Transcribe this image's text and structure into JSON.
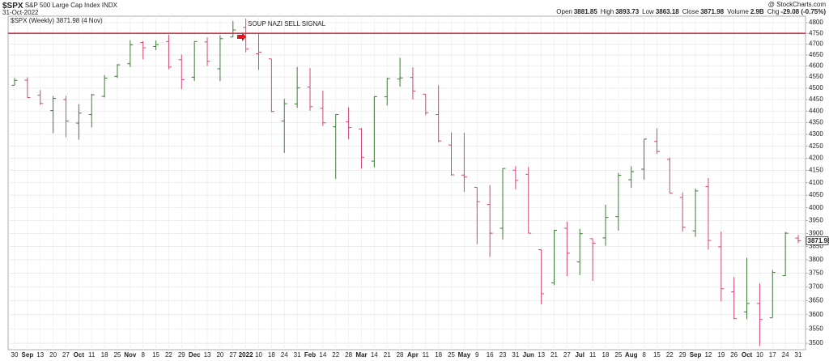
{
  "chart_data": {
    "type": "ohlc",
    "title": "$SPX",
    "subtitle": "S&P 500 Large Cap Index",
    "exchange": "INDX",
    "date": "31-Oct-2022",
    "source": "@ StockCharts.com",
    "info": [
      {
        "label": "Open",
        "value": "3881.85"
      },
      {
        "label": "High",
        "value": "3893.73"
      },
      {
        "label": "Low",
        "value": "3863.18"
      },
      {
        "label": "Close",
        "value": "3871.98"
      },
      {
        "label": "Volume",
        "value": "2.9B"
      },
      {
        "label": "Chg",
        "value": "-29.08 (-0.75%)"
      }
    ],
    "legend": "$SPX (Weekly) 3871.98 (4 Nov)",
    "last_value": 3871.98,
    "last_label": "3871.98",
    "annotation": "SOUP NAZI SELL SIGNAL",
    "hline": 4750,
    "hline_color": "#d8304a",
    "up_color": "#3d7a35",
    "down_color": "#d1457a",
    "log": true,
    "grid": true,
    "categories": [
      "30",
      "Sep",
      "13",
      "20",
      "27",
      "Oct",
      "11",
      "18",
      "25",
      "Nov",
      "8",
      "15",
      "22",
      "29",
      "Dec",
      "13",
      "20",
      "27",
      "2022",
      "10",
      "18",
      "24",
      "31",
      "Feb",
      "14",
      "22",
      "28",
      "Mar",
      "14",
      "21",
      "28",
      "Apr",
      "11",
      "18",
      "25",
      "May",
      "9",
      "16",
      "23",
      "31",
      "Jun",
      "13",
      "21",
      "27",
      "Jul",
      "11",
      "18",
      "25",
      "Aug",
      "8",
      "15",
      "22",
      "29",
      "Sep",
      "12",
      "19",
      "26",
      "Oct",
      "10",
      "17",
      "24",
      "31"
    ],
    "open": [
      4513,
      4536,
      4469,
      4402,
      4450,
      4348,
      4385,
      4464,
      4553,
      4610,
      4707,
      4689,
      4712,
      4628,
      4549,
      4710,
      4587,
      4733,
      4778,
      4655,
      4632,
      4357,
      4431,
      4505,
      4412,
      4332,
      4354,
      4323,
      4188,
      4462,
      4541,
      4548,
      4474,
      4385,
      4255,
      4131,
      4081,
      4013,
      3920,
      4151,
      4134,
      3838,
      3715,
      3920,
      3792,
      3880,
      3883,
      3965,
      4112,
      4155,
      4270,
      4195,
      4041,
      3910,
      4084,
      3849,
      3682,
      3610,
      3640,
      3589,
      3741,
      3882
    ],
    "high": [
      4545,
      4549,
      4492,
      4465,
      4466,
      4429,
      4475,
      4559,
      4608,
      4718,
      4714,
      4717,
      4744,
      4652,
      4713,
      4731,
      4741,
      4808,
      4819,
      4749,
      4632,
      4453,
      4595,
      4590,
      4489,
      4385,
      4416,
      4327,
      4465,
      4546,
      4637,
      4593,
      4474,
      4513,
      4308,
      4307,
      4082,
      4090,
      4159,
      4168,
      4164,
      3838,
      3913,
      3946,
      3918,
      3880,
      4012,
      4140,
      4167,
      4280,
      4325,
      4203,
      4061,
      4076,
      4119,
      3907,
      3736,
      3807,
      3712,
      3762,
      3906,
      3894
    ],
    "low": [
      4513,
      4458,
      4427,
      4305,
      4288,
      4278,
      4329,
      4459,
      4546,
      4595,
      4630,
      4672,
      4585,
      4495,
      4532,
      4600,
      4531,
      4733,
      4662,
      4582,
      4395,
      4222,
      4414,
      4401,
      4335,
      4115,
      4279,
      4157,
      4162,
      4424,
      4507,
      4450,
      4382,
      4267,
      4129,
      4063,
      3859,
      3811,
      3876,
      4073,
      3900,
      3637,
      3706,
      3739,
      3743,
      3722,
      3853,
      3911,
      4079,
      4112,
      4218,
      4057,
      3907,
      3887,
      3838,
      3647,
      3584,
      3584,
      3491,
      3590,
      3740,
      3863
    ],
    "close": [
      4535,
      4459,
      4433,
      4455,
      4357,
      4391,
      4471,
      4545,
      4605,
      4697,
      4683,
      4698,
      4595,
      4538,
      4712,
      4621,
      4725,
      4766,
      4677,
      4663,
      4398,
      4432,
      4501,
      4419,
      4349,
      4385,
      4329,
      4204,
      4463,
      4543,
      4546,
      4488,
      4393,
      4272,
      4132,
      4123,
      4024,
      3901,
      4158,
      4109,
      3901,
      3675,
      3912,
      3825,
      3899,
      3863,
      3962,
      4130,
      4145,
      4280,
      4228,
      4058,
      3924,
      4067,
      3873,
      3693,
      3586,
      3640,
      3583,
      3753,
      3901,
      3872
    ],
    "ylim": [
      3478,
      4831
    ],
    "yticks": [
      3500,
      3550,
      3600,
      3650,
      3700,
      3750,
      3800,
      3850,
      3900,
      3950,
      4000,
      4050,
      4100,
      4150,
      4200,
      4250,
      4300,
      4350,
      4400,
      4450,
      4500,
      4550,
      4600,
      4650,
      4700,
      4750,
      4800
    ]
  }
}
